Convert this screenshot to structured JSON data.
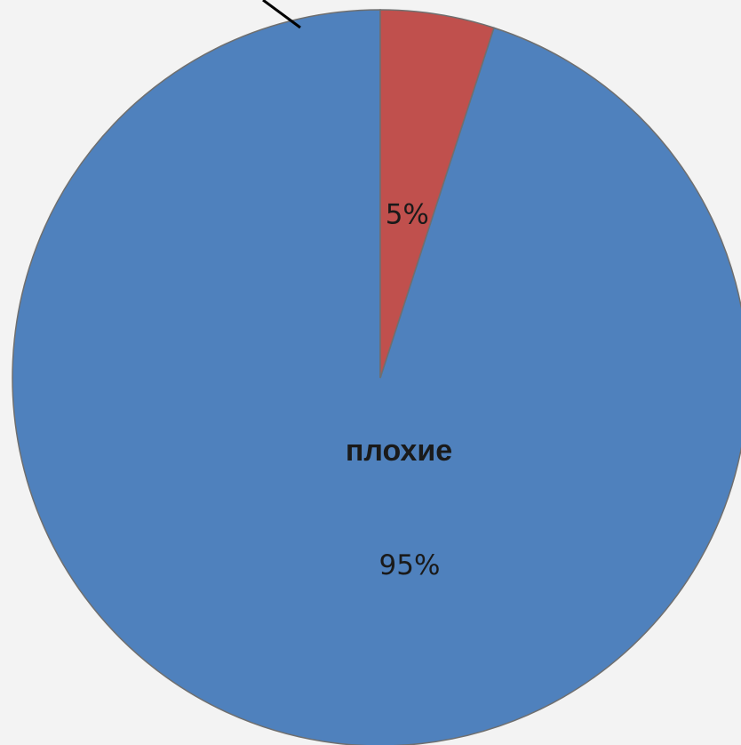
{
  "chart_data": {
    "type": "pie",
    "start_angle_deg": 0,
    "direction": "counterclockwise",
    "slices": [
      {
        "name": "плохие",
        "value": 95,
        "label": "95%",
        "color": "#4f81bd",
        "show_name": true
      },
      {
        "name": "",
        "value": 5,
        "label": "5%",
        "color": "#c0504d",
        "show_name": false
      }
    ],
    "legend": "none"
  }
}
